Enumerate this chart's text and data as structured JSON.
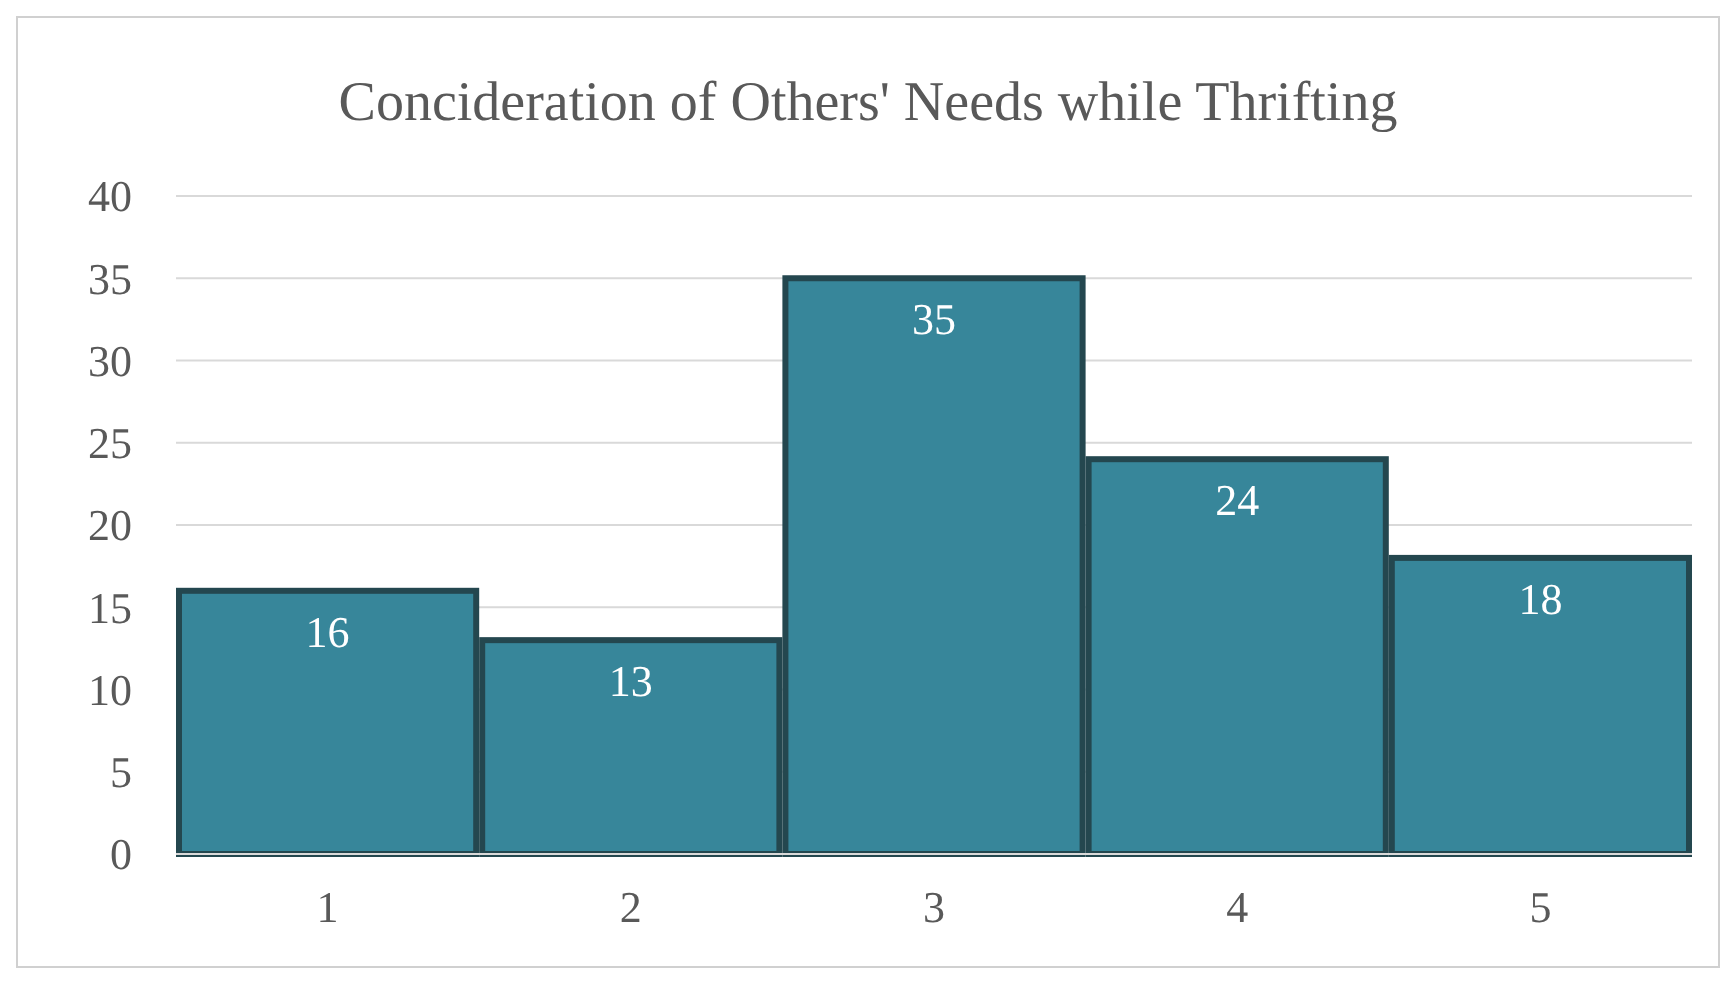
{
  "chart_data": {
    "type": "bar",
    "title": "Concideration of Others' Needs while Thrifting",
    "categories": [
      "1",
      "2",
      "3",
      "4",
      "5"
    ],
    "values": [
      16,
      13,
      35,
      24,
      18
    ],
    "color": "#37869a",
    "ylim": [
      0,
      40
    ],
    "yticks": [
      0,
      5,
      10,
      15,
      20,
      25,
      30,
      35,
      40
    ],
    "grid": "y",
    "data_labels": true
  }
}
